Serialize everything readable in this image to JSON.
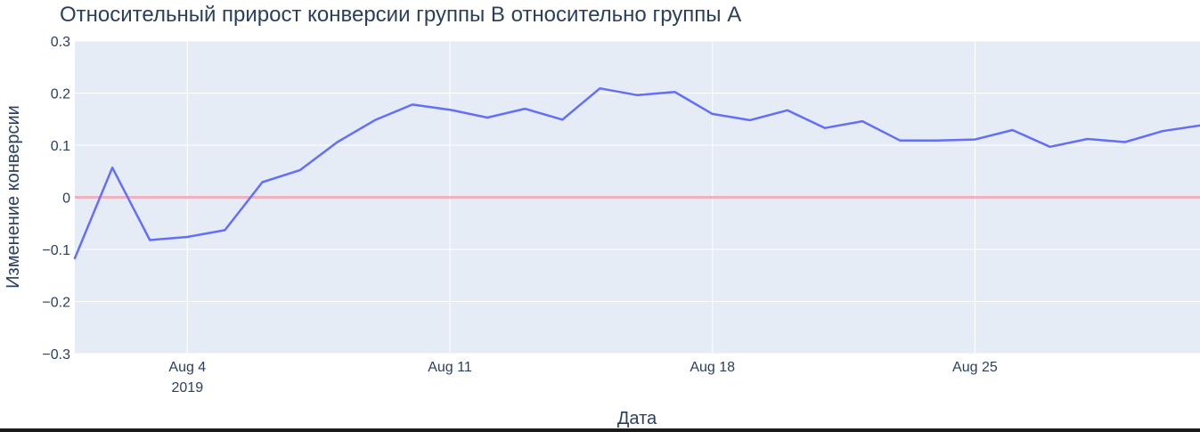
{
  "chart_data": {
    "type": "line",
    "title": "Относительный прирост конверсии группы B относительно группы A",
    "xlabel": "Дата",
    "ylabel": "Изменение конверсии",
    "ylim": [
      -0.3,
      0.3
    ],
    "xlim": [
      "2019-08-01",
      "2019-08-31"
    ],
    "x_ticks": [
      {
        "date": "2019-08-04",
        "label": "Aug 4",
        "sublabel": "2019"
      },
      {
        "date": "2019-08-11",
        "label": "Aug 11",
        "sublabel": ""
      },
      {
        "date": "2019-08-18",
        "label": "Aug 18",
        "sublabel": ""
      },
      {
        "date": "2019-08-25",
        "label": "Aug 25",
        "sublabel": ""
      }
    ],
    "y_ticks": [
      {
        "value": 0.3,
        "label": "0.3"
      },
      {
        "value": 0.2,
        "label": "0.2"
      },
      {
        "value": 0.1,
        "label": "0.1"
      },
      {
        "value": 0,
        "label": "0"
      },
      {
        "value": -0.1,
        "label": "−0.1"
      },
      {
        "value": -0.2,
        "label": "−0.2"
      },
      {
        "value": -0.3,
        "label": "−0.3"
      }
    ],
    "grid": true,
    "series": [
      {
        "name": "",
        "color": "#636efa",
        "x": [
          "2019-08-01",
          "2019-08-02",
          "2019-08-03",
          "2019-08-04",
          "2019-08-05",
          "2019-08-06",
          "2019-08-07",
          "2019-08-08",
          "2019-08-09",
          "2019-08-10",
          "2019-08-11",
          "2019-08-12",
          "2019-08-13",
          "2019-08-14",
          "2019-08-15",
          "2019-08-16",
          "2019-08-17",
          "2019-08-18",
          "2019-08-19",
          "2019-08-20",
          "2019-08-21",
          "2019-08-22",
          "2019-08-23",
          "2019-08-24",
          "2019-08-25",
          "2019-08-26",
          "2019-08-27",
          "2019-08-28",
          "2019-08-29",
          "2019-08-30",
          "2019-08-31"
        ],
        "y": [
          -0.117,
          0.057,
          -0.082,
          -0.076,
          -0.063,
          0.029,
          0.052,
          0.106,
          0.148,
          0.178,
          0.168,
          0.153,
          0.17,
          0.149,
          0.209,
          0.196,
          0.202,
          0.16,
          0.148,
          0.167,
          0.133,
          0.146,
          0.109,
          0.109,
          0.111,
          0.129,
          0.097,
          0.112,
          0.106,
          0.127,
          0.138
        ]
      }
    ],
    "reference_line": {
      "value": 0,
      "color": "#f4a6b4"
    },
    "colors": {
      "plot_bg": "#e5ecf6",
      "grid": "#ffffff",
      "text": "#2a3f5f",
      "line": "#636efa"
    }
  }
}
